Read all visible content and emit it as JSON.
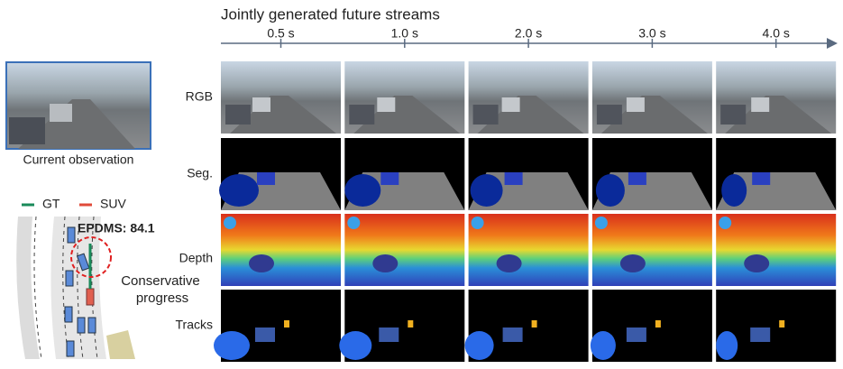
{
  "title": "Jointly generated future streams",
  "timeline": {
    "ticks": [
      "0.5 s",
      "1.0 s",
      "2.0 s",
      "3.0 s",
      "4.0 s"
    ]
  },
  "rows": [
    "RGB",
    "Seg.",
    "Depth",
    "Tracks"
  ],
  "observation": {
    "caption": "Current observation"
  },
  "legend": [
    "GT",
    "SUV"
  ],
  "annotation": {
    "score": "EPDMS: 84.1",
    "note": [
      "Conservative",
      "progress"
    ]
  }
}
